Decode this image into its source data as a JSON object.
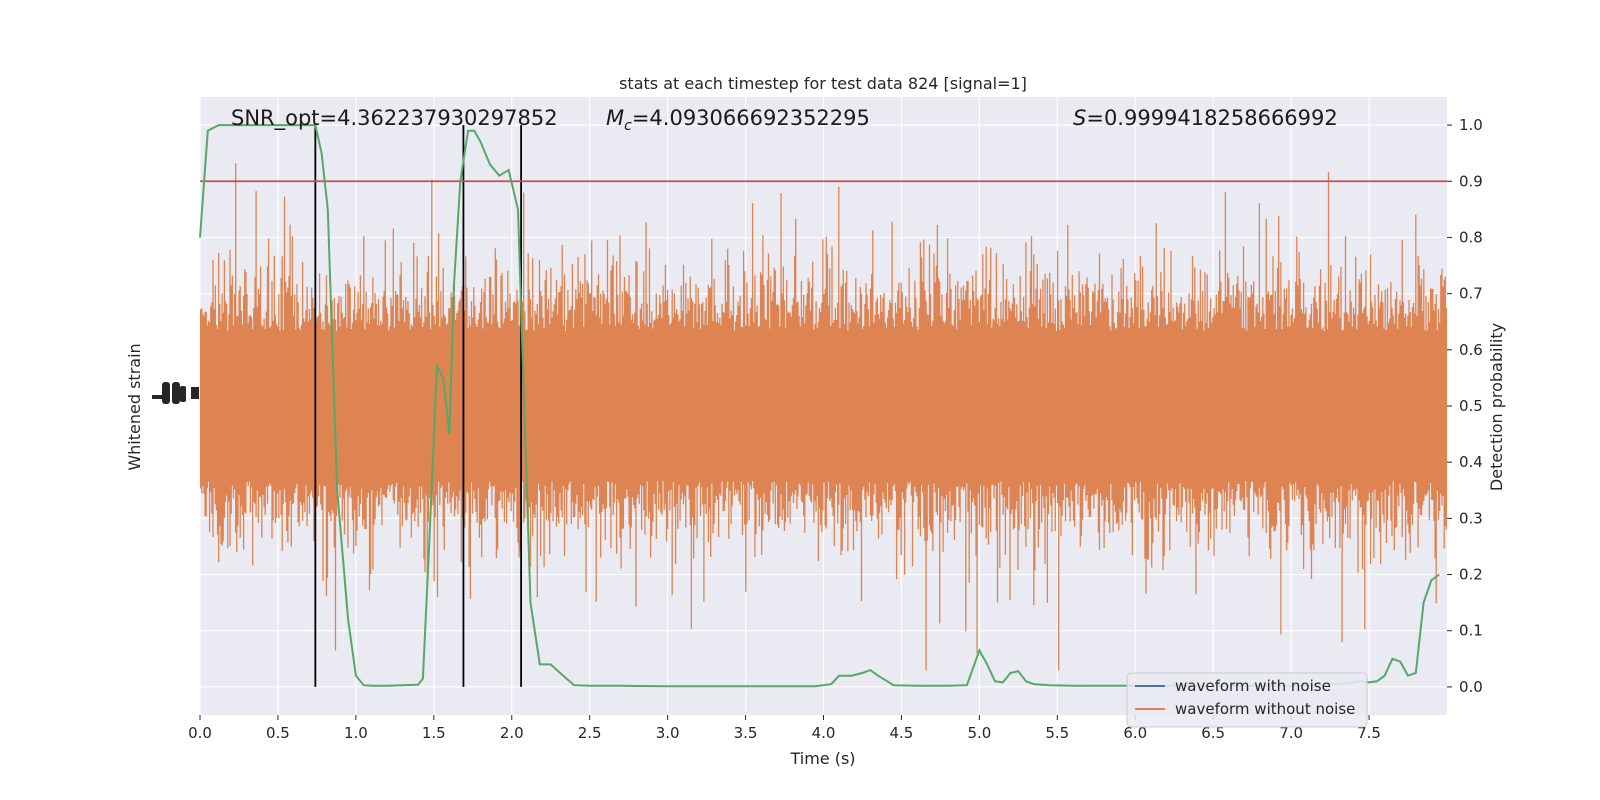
{
  "chart_data": {
    "type": "line",
    "title": "stats at each timestep for test data 824 [signal=1]",
    "xlabel": "Time (s)",
    "ylabel_left": "Whitened strain",
    "ylabel_right": "Detection probability",
    "xlim": [
      0.0,
      8.0
    ],
    "ylim_right": [
      -0.05,
      1.05
    ],
    "x_ticks": [
      0.0,
      0.5,
      1.0,
      1.5,
      2.0,
      2.5,
      3.0,
      3.5,
      4.0,
      4.5,
      5.0,
      5.5,
      6.0,
      6.5,
      7.0,
      7.5
    ],
    "x_tick_labels": [
      "0.0",
      "0.5",
      "1.0",
      "1.5",
      "2.0",
      "2.5",
      "3.0",
      "3.5",
      "4.0",
      "4.5",
      "5.0",
      "5.5",
      "6.0",
      "6.5",
      "7.0",
      "7.5"
    ],
    "y_ticks_right": [
      0.0,
      0.1,
      0.2,
      0.3,
      0.4,
      0.5,
      0.6,
      0.7,
      0.8,
      0.9,
      1.0
    ],
    "y_tick_labels_right": [
      "0.0",
      "0.1",
      "0.2",
      "0.3",
      "0.4",
      "0.5",
      "0.6",
      "0.7",
      "0.8",
      "0.9",
      "1.0"
    ],
    "grid": true,
    "annotations": {
      "snr": "SNR_opt=4.362237930297852",
      "mc_symbol": "M",
      "mc_sub": "c",
      "mc_value": "=4.093066692352295",
      "s_symbol": "S",
      "s_value": "=0.9999418258666992"
    },
    "threshold": 0.9,
    "vlines": [
      0.74,
      1.69,
      2.06
    ],
    "series": [
      {
        "name": "waveform with noise",
        "color": "#4c72b0"
      },
      {
        "name": "waveform without noise",
        "color": "#dd8452"
      }
    ],
    "probability": {
      "color": "#55a868",
      "x": [
        0.0,
        0.05,
        0.12,
        0.2,
        0.3,
        0.4,
        0.5,
        0.6,
        0.7,
        0.74,
        0.78,
        0.82,
        0.88,
        0.95,
        1.0,
        1.05,
        1.1,
        1.2,
        1.3,
        1.4,
        1.43,
        1.47,
        1.52,
        1.56,
        1.6,
        1.63,
        1.67,
        1.72,
        1.76,
        1.8,
        1.86,
        1.92,
        1.98,
        2.04,
        2.08,
        2.12,
        2.18,
        2.25,
        2.33,
        2.4,
        2.5,
        2.7,
        3.0,
        3.2,
        3.4,
        3.6,
        3.8,
        3.95,
        4.05,
        4.1,
        4.18,
        4.25,
        4.3,
        4.35,
        4.45,
        4.6,
        4.8,
        4.92,
        5.0,
        5.05,
        5.1,
        5.15,
        5.2,
        5.25,
        5.3,
        5.35,
        5.45,
        5.6,
        5.8,
        6.0,
        6.3,
        6.6,
        6.9,
        7.1,
        7.3,
        7.45,
        7.5,
        7.55,
        7.6,
        7.65,
        7.7,
        7.75,
        7.8,
        7.85,
        7.9,
        7.95
      ],
      "y": [
        0.8,
        0.99,
        1.0,
        1.0,
        1.0,
        1.0,
        1.0,
        1.0,
        1.0,
        1.0,
        0.95,
        0.85,
        0.35,
        0.12,
        0.02,
        0.003,
        0.002,
        0.002,
        0.003,
        0.004,
        0.015,
        0.25,
        0.57,
        0.55,
        0.45,
        0.72,
        0.9,
        0.99,
        0.99,
        0.97,
        0.93,
        0.91,
        0.92,
        0.85,
        0.5,
        0.15,
        0.04,
        0.04,
        0.02,
        0.003,
        0.002,
        0.002,
        0.001,
        0.001,
        0.001,
        0.001,
        0.001,
        0.001,
        0.005,
        0.02,
        0.02,
        0.025,
        0.03,
        0.02,
        0.003,
        0.002,
        0.002,
        0.003,
        0.065,
        0.04,
        0.01,
        0.008,
        0.025,
        0.028,
        0.01,
        0.005,
        0.003,
        0.002,
        0.002,
        0.002,
        0.002,
        0.002,
        0.002,
        0.002,
        0.005,
        0.01,
        0.008,
        0.01,
        0.02,
        0.05,
        0.045,
        0.02,
        0.025,
        0.15,
        0.19,
        0.2
      ]
    },
    "threshold_color": "#c44e52",
    "vline_color": "#000000",
    "legend_position": "lower-right",
    "background_color": "#eaeaf2"
  }
}
